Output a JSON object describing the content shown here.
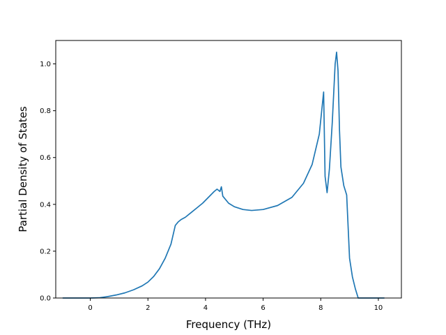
{
  "chart_data": {
    "type": "line",
    "title": "",
    "xlabel": "Frequency (THz)",
    "ylabel": "Partial Density of States",
    "xlim": [
      -1.2,
      10.8
    ],
    "ylim": [
      0.0,
      1.1
    ],
    "xticks": [
      0,
      2,
      4,
      6,
      8,
      10
    ],
    "xtick_labels": [
      "0",
      "2",
      "4",
      "6",
      "8",
      "10"
    ],
    "yticks": [
      0.0,
      0.2,
      0.4,
      0.6,
      0.8,
      1.0
    ],
    "ytick_labels": [
      "0.0",
      "0.2",
      "0.4",
      "0.6",
      "0.8",
      "1.0"
    ],
    "grid": false,
    "legend": false,
    "line_color": "#1f77b4",
    "series": [
      {
        "x": [
          -0.95,
          0.0,
          0.3,
          0.6,
          0.9,
          1.2,
          1.5,
          1.8,
          2.0,
          2.2,
          2.4,
          2.6,
          2.8,
          2.95,
          3.05,
          3.15,
          3.3,
          3.5,
          3.7,
          3.9,
          4.1,
          4.3,
          4.4,
          4.5,
          4.55,
          4.6,
          4.8,
          5.0,
          5.3,
          5.6,
          6.0,
          6.5,
          7.0,
          7.4,
          7.7,
          7.95,
          8.1,
          8.15,
          8.22,
          8.3,
          8.4,
          8.5,
          8.55,
          8.6,
          8.65,
          8.7,
          8.8,
          8.9,
          9.0,
          9.1,
          9.2,
          9.3,
          10.2
        ],
        "y": [
          0.0,
          0.0,
          0.001,
          0.006,
          0.013,
          0.022,
          0.035,
          0.052,
          0.068,
          0.092,
          0.125,
          0.17,
          0.23,
          0.31,
          0.325,
          0.335,
          0.345,
          0.365,
          0.385,
          0.405,
          0.43,
          0.455,
          0.465,
          0.455,
          0.475,
          0.435,
          0.405,
          0.39,
          0.378,
          0.374,
          0.378,
          0.395,
          0.43,
          0.49,
          0.57,
          0.7,
          0.88,
          0.52,
          0.45,
          0.55,
          0.75,
          1.0,
          1.05,
          0.97,
          0.72,
          0.56,
          0.48,
          0.44,
          0.17,
          0.09,
          0.04,
          0.0,
          0.0
        ]
      }
    ]
  }
}
